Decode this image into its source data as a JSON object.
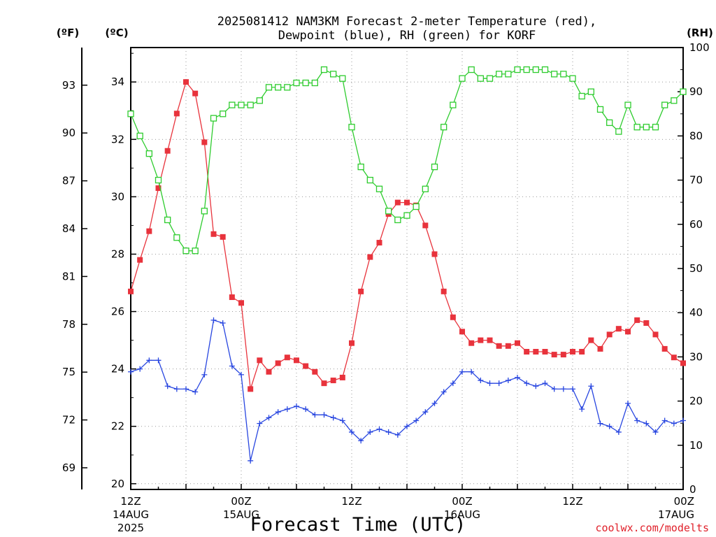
{
  "chart_data": {
    "type": "line",
    "title_line1": "2025081412 NAM3KM Forecast 2-meter Temperature (red),",
    "title_line2": "Dewpoint (blue), RH (green) for KORF",
    "xlabel": "Forecast Time (UTC)",
    "credit": "coolwx.com/modelts",
    "units": {
      "fahrenheit": "(ºF)",
      "celsius": "(ºC)",
      "rh": "(RH)"
    },
    "y_left_f_ticks": [
      "69",
      "72",
      "75",
      "78",
      "81",
      "84",
      "87",
      "90",
      "93"
    ],
    "y_left_f_values": [
      69,
      72,
      75,
      78,
      81,
      84,
      87,
      90,
      93
    ],
    "y_left_c_ticks": [
      "20",
      "22",
      "24",
      "26",
      "28",
      "30",
      "32",
      "34"
    ],
    "y_left_c_values": [
      20,
      22,
      24,
      26,
      28,
      30,
      32,
      34
    ],
    "y_right_ticks": [
      "0",
      "10",
      "20",
      "30",
      "40",
      "50",
      "60",
      "70",
      "80",
      "90",
      "100"
    ],
    "y_right_values": [
      0,
      10,
      20,
      30,
      40,
      50,
      60,
      70,
      80,
      90,
      100
    ],
    "ylim_c": [
      19.8,
      35.2
    ],
    "ylim_rh": [
      0,
      100
    ],
    "xlim_hours": [
      12,
      60
    ],
    "x_ticks": [
      {
        "hour": 12,
        "label1": "12Z",
        "label2": "14AUG",
        "label3": "2025"
      },
      {
        "hour": 24,
        "label1": "00Z",
        "label2": "15AUG",
        "label3": ""
      },
      {
        "hour": 36,
        "label1": "12Z",
        "label2": "",
        "label3": ""
      },
      {
        "hour": 48,
        "label1": "00Z",
        "label2": "16AUG",
        "label3": ""
      },
      {
        "hour": 60,
        "label1": "12Z",
        "label2": "",
        "label3": ""
      },
      {
        "hour": 72,
        "label1": "00Z",
        "label2": "17AUG",
        "label3": ""
      }
    ],
    "series": [
      {
        "name": "2-meter Temperature",
        "axis": "celsius",
        "color": "#e8333c",
        "marker": "filled-square",
        "x": [
          12,
          13,
          14,
          15,
          16,
          17,
          18,
          19,
          20,
          21,
          22,
          23,
          24,
          25,
          26,
          27,
          28,
          29,
          30,
          31,
          32,
          33,
          34,
          35,
          36,
          37,
          38,
          39,
          40,
          41,
          42,
          43,
          44,
          45,
          46,
          47,
          48,
          49,
          50,
          51,
          52,
          53,
          54,
          55,
          56,
          57,
          58,
          59,
          60,
          61,
          62,
          63,
          64,
          65,
          66,
          67,
          68,
          69,
          70,
          71,
          72
        ],
        "values": [
          26.7,
          27.8,
          28.8,
          30.3,
          31.6,
          32.9,
          34.0,
          33.6,
          31.9,
          28.7,
          28.6,
          26.5,
          26.3,
          23.3,
          24.3,
          23.9,
          24.2,
          24.4,
          24.3,
          24.1,
          23.9,
          23.5,
          23.6,
          23.7,
          24.9,
          26.7,
          27.9,
          28.4,
          29.4,
          29.8,
          29.8,
          29.7,
          29.0,
          28.0,
          26.7,
          25.8,
          25.3,
          24.9,
          25.0,
          25.0,
          24.8,
          24.8,
          24.9,
          24.6,
          24.6,
          24.6,
          24.5,
          24.5,
          24.6,
          24.6,
          25.0,
          24.7,
          25.2,
          25.4,
          25.3,
          25.7,
          25.6,
          25.2,
          24.7,
          24.4,
          24.2
        ]
      },
      {
        "name": "Dewpoint",
        "axis": "celsius",
        "color": "#2846e0",
        "marker": "plus",
        "x": [
          12,
          13,
          14,
          15,
          16,
          17,
          18,
          19,
          20,
          21,
          22,
          23,
          24,
          25,
          26,
          27,
          28,
          29,
          30,
          31,
          32,
          33,
          34,
          35,
          36,
          37,
          38,
          39,
          40,
          41,
          42,
          43,
          44,
          45,
          46,
          47,
          48,
          49,
          50,
          51,
          52,
          53,
          54,
          55,
          56,
          57,
          58,
          59,
          60,
          61,
          62,
          63,
          64,
          65,
          66,
          67,
          68,
          69,
          70,
          71,
          72
        ],
        "values": [
          23.9,
          24.0,
          24.3,
          24.3,
          23.4,
          23.3,
          23.3,
          23.2,
          23.8,
          25.7,
          25.6,
          24.1,
          23.8,
          20.8,
          22.1,
          22.3,
          22.5,
          22.6,
          22.7,
          22.6,
          22.4,
          22.4,
          22.3,
          22.2,
          21.8,
          21.5,
          21.8,
          21.9,
          21.8,
          21.7,
          22.0,
          22.2,
          22.5,
          22.8,
          23.2,
          23.5,
          23.9,
          23.9,
          23.6,
          23.5,
          23.5,
          23.6,
          23.7,
          23.5,
          23.4,
          23.5,
          23.3,
          23.3,
          23.3,
          22.6,
          23.4,
          22.1,
          22.0,
          21.8,
          22.8,
          22.2,
          22.1,
          21.8,
          22.2,
          22.1,
          22.2
        ]
      },
      {
        "name": "RH",
        "axis": "rh",
        "color": "#2ecc2e",
        "marker": "open-square",
        "x": [
          12,
          13,
          14,
          15,
          16,
          17,
          18,
          19,
          20,
          21,
          22,
          23,
          24,
          25,
          26,
          27,
          28,
          29,
          30,
          31,
          32,
          33,
          34,
          35,
          36,
          37,
          38,
          39,
          40,
          41,
          42,
          43,
          44,
          45,
          46,
          47,
          48,
          49,
          50,
          51,
          52,
          53,
          54,
          55,
          56,
          57,
          58,
          59,
          60,
          61,
          62,
          63,
          64,
          65,
          66,
          67,
          68,
          69,
          70,
          71,
          72
        ],
        "values": [
          85,
          80,
          76,
          70,
          61,
          57,
          54,
          54,
          63,
          84,
          85,
          87,
          87,
          87,
          88,
          91,
          91,
          91,
          92,
          92,
          92,
          95,
          94,
          93,
          82,
          73,
          70,
          68,
          63,
          61,
          62,
          64,
          68,
          73,
          82,
          87,
          93,
          95,
          93,
          93,
          94,
          94,
          95,
          95,
          95,
          95,
          94,
          94,
          93,
          89,
          90,
          86,
          83,
          81,
          87,
          82,
          82,
          82,
          87,
          88,
          90
        ]
      }
    ]
  }
}
